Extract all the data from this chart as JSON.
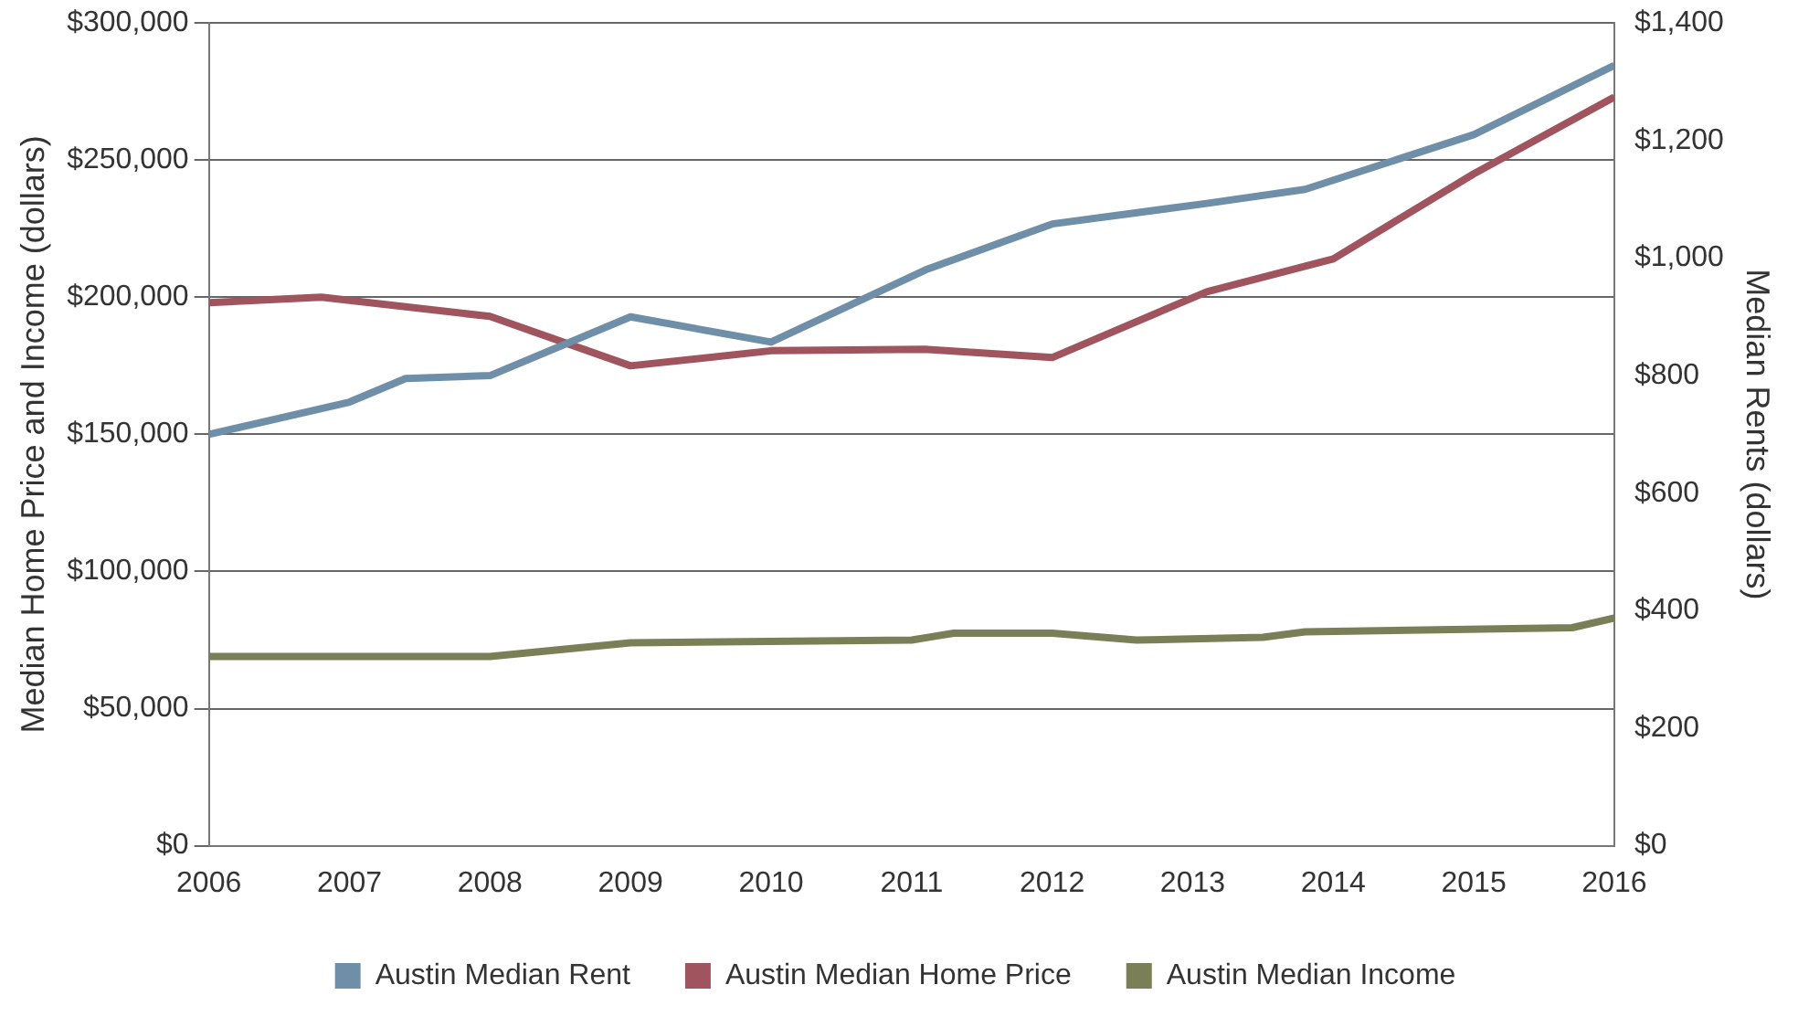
{
  "chart_data": {
    "type": "line",
    "ylabel": "Median Home Price and Income (dollars)",
    "y2label": "Median Rents (dollars)",
    "xlim": [
      2006,
      2016
    ],
    "xticks": [
      2006,
      2007,
      2008,
      2009,
      2010,
      2011,
      2012,
      2013,
      2014,
      2015,
      2016
    ],
    "ylim": [
      0,
      300000
    ],
    "yticks": [
      {
        "value": 0,
        "label": "$0"
      },
      {
        "value": 50000,
        "label": "$50,000"
      },
      {
        "value": 100000,
        "label": "$100,000"
      },
      {
        "value": 150000,
        "label": "$150,000"
      },
      {
        "value": 200000,
        "label": "$200,000"
      },
      {
        "value": 250000,
        "label": "$250,000"
      },
      {
        "value": 300000,
        "label": "$300,000"
      }
    ],
    "y2lim": [
      0,
      1400
    ],
    "y2ticks": [
      {
        "value": 0,
        "label": "$0"
      },
      {
        "value": 200,
        "label": "$200"
      },
      {
        "value": 400,
        "label": "$400"
      },
      {
        "value": 600,
        "label": "$600"
      },
      {
        "value": 800,
        "label": "$800"
      },
      {
        "value": 1000,
        "label": "$1,000"
      },
      {
        "value": 1200,
        "label": "$1,200"
      },
      {
        "value": 1400,
        "label": "$1,400"
      }
    ],
    "series": [
      {
        "name": "Austin Median Rent",
        "color": "#6f8ea8",
        "axis": "y2",
        "x": [
          2006,
          2007,
          2007.4,
          2008,
          2009,
          2010,
          2011.1,
          2012,
          2013.1,
          2013.8,
          2015,
          2016
        ],
        "values": [
          700,
          755,
          795,
          800,
          900,
          857,
          980,
          1058,
          1093,
          1117,
          1210,
          1328
        ]
      },
      {
        "name": "Austin Median Home Price",
        "color": "#a0545e",
        "x": [
          2006,
          2006.8,
          2008,
          2009,
          2010,
          2011.1,
          2012,
          2013.1,
          2014,
          2015,
          2016
        ],
        "values": [
          198000,
          200000,
          193000,
          175000,
          180500,
          181000,
          178000,
          202000,
          214000,
          245000,
          273000
        ]
      },
      {
        "name": "Austin Median Income",
        "color": "#7b7f57",
        "x": [
          2006,
          2008,
          2009,
          2011,
          2011.3,
          2012,
          2012.6,
          2013.5,
          2013.8,
          2015.7,
          2016
        ],
        "values": [
          69000,
          69000,
          74000,
          75000,
          77500,
          77500,
          75000,
          76000,
          78000,
          79500,
          83000
        ]
      }
    ],
    "grid": "y",
    "legend": "bottom",
    "marker": "none",
    "line_style": "solid"
  }
}
